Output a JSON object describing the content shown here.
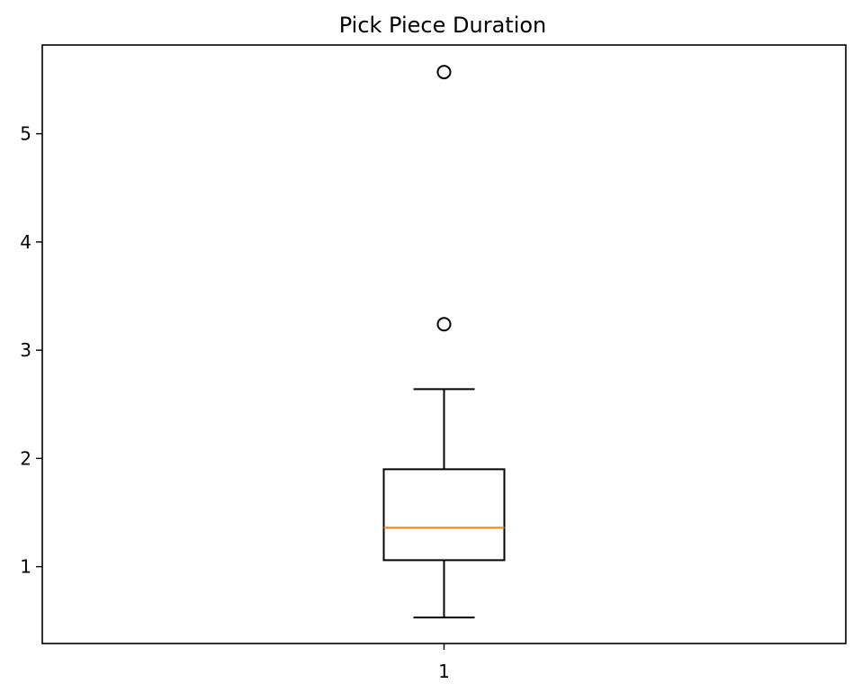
{
  "chart_data": {
    "type": "boxplot",
    "title": "Pick Piece Duration",
    "xlabel": "",
    "ylabel": "",
    "categories": [
      "1"
    ],
    "ylim": [
      0.29,
      5.82
    ],
    "yticks": [
      1,
      2,
      3,
      4,
      5
    ],
    "grid": false,
    "boxes": [
      {
        "category": "1",
        "whisker_low": 0.53,
        "q1": 1.06,
        "median": 1.36,
        "q3": 1.9,
        "whisker_high": 2.64,
        "outliers": [
          3.24,
          5.57
        ]
      }
    ],
    "colors": {
      "box": "#000000",
      "median": "#ff7f0e",
      "outlier": "#000000"
    }
  }
}
